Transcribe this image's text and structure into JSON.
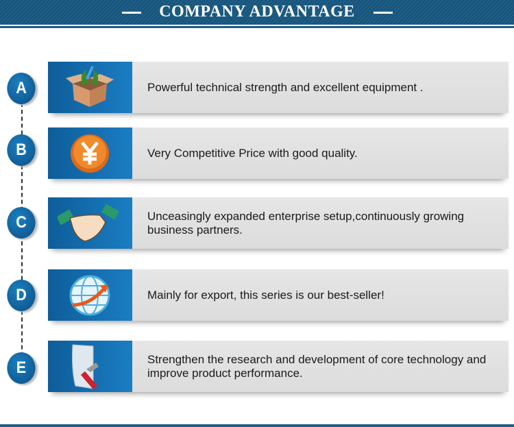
{
  "header": {
    "title": "COMPANY ADVANTAGE"
  },
  "items": [
    {
      "letter": "A",
      "icon": "box-with-tools-icon",
      "text": "Powerful technical strength and excellent equipment ."
    },
    {
      "letter": "B",
      "icon": "yen-coin-icon",
      "text": "Very Competitive Price with good quality."
    },
    {
      "letter": "C",
      "icon": "handshake-icon",
      "text": "Unceasingly expanded enterprise setup,continuously growing business partners."
    },
    {
      "letter": "D",
      "icon": "globe-arrow-icon",
      "text": "Mainly for export, this series is our best-seller!"
    },
    {
      "letter": "E",
      "icon": "folder-tools-icon",
      "text": "Strengthen the research and development of core technology and improve product performance."
    }
  ],
  "colors": {
    "brand": "#1f5f86",
    "circle": "#0c4f86",
    "panel": "#1a7dc2"
  }
}
